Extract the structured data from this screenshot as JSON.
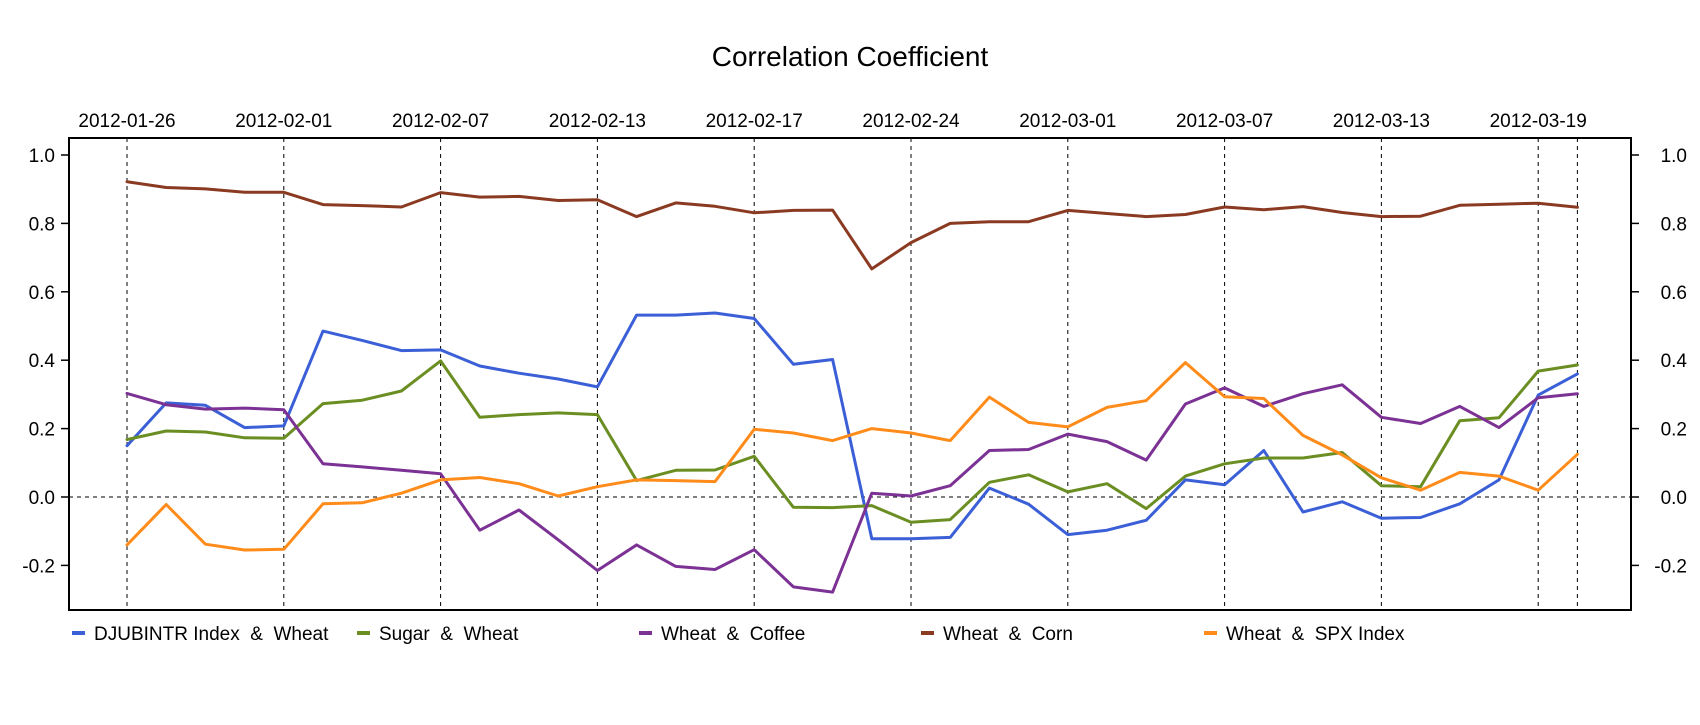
{
  "chart_data": {
    "type": "line",
    "title": "Correlation Coefficient",
    "xlabel": "",
    "ylabel": "",
    "ylim": [
      -0.33,
      1.05
    ],
    "yticks": [
      -0.2,
      0.0,
      0.2,
      0.4,
      0.6,
      0.8,
      1.0
    ],
    "ytick_labels": [
      "-0.2",
      "0.0",
      "0.2",
      "0.4",
      "0.6",
      "0.8",
      "1.0"
    ],
    "xtick_labels": [
      "2012-01-26",
      "2012-02-01",
      "2012-02-07",
      "2012-02-13",
      "2012-02-17",
      "2012-02-24",
      "2012-03-01",
      "2012-03-07",
      "2012-03-13",
      "2012-03-19"
    ],
    "xtick_positions": [
      0,
      4,
      8,
      12,
      16,
      20,
      24,
      28,
      32,
      36
    ],
    "extra_vlines": [
      37
    ],
    "x": [
      "2012-01-26",
      "2012-01-27",
      "2012-01-30",
      "2012-01-31",
      "2012-02-01",
      "2012-02-02",
      "2012-02-03",
      "2012-02-06",
      "2012-02-07",
      "2012-02-08",
      "2012-02-09",
      "2012-02-10",
      "2012-02-13",
      "2012-02-14",
      "2012-02-15",
      "2012-02-16",
      "2012-02-17",
      "2012-02-21",
      "2012-02-22",
      "2012-02-23",
      "2012-02-24",
      "2012-02-27",
      "2012-02-28",
      "2012-02-29",
      "2012-03-01",
      "2012-03-02",
      "2012-03-05",
      "2012-03-06",
      "2012-03-07",
      "2012-03-08",
      "2012-03-09",
      "2012-03-12",
      "2012-03-13",
      "2012-03-14",
      "2012-03-15",
      "2012-03-16",
      "2012-03-19",
      "2012-03-20"
    ],
    "grid": "dashed vertical lines at tick dates and dashed horizontal line at 0.0",
    "legend_position": "bottom",
    "series": [
      {
        "name": "DJUBINTR Index  &  Wheat",
        "color": "#3b5fd6",
        "values": [
          0.15,
          0.275,
          0.268,
          0.203,
          0.208,
          0.485,
          0.458,
          0.428,
          0.43,
          0.383,
          0.362,
          0.345,
          0.322,
          0.532,
          0.532,
          0.538,
          0.522,
          0.388,
          0.402,
          -0.122,
          -0.122,
          -0.118,
          0.026,
          -0.021,
          -0.11,
          -0.097,
          -0.068,
          0.05,
          0.036,
          0.136,
          -0.044,
          -0.014,
          -0.062,
          -0.06,
          -0.02,
          0.05,
          0.298,
          0.36
        ]
      },
      {
        "name": "Sugar  &  Wheat",
        "color": "#6b8e23",
        "values": [
          0.168,
          0.193,
          0.19,
          0.173,
          0.172,
          0.273,
          0.283,
          0.31,
          0.398,
          0.233,
          0.241,
          0.246,
          0.241,
          0.048,
          0.078,
          0.079,
          0.119,
          -0.03,
          -0.031,
          -0.025,
          -0.074,
          -0.066,
          0.043,
          0.065,
          0.015,
          0.039,
          -0.034,
          0.061,
          0.097,
          0.114,
          0.114,
          0.13,
          0.033,
          0.03,
          0.223,
          0.232,
          0.368,
          0.386
        ]
      },
      {
        "name": "Wheat  &  Coffee",
        "color": "#7b3294",
        "values": [
          0.303,
          0.27,
          0.257,
          0.26,
          0.255,
          0.097,
          0.088,
          0.078,
          0.068,
          -0.097,
          -0.038,
          -0.125,
          -0.215,
          -0.14,
          -0.203,
          -0.212,
          -0.154,
          -0.263,
          -0.278,
          0.011,
          0.003,
          0.033,
          0.136,
          0.139,
          0.184,
          0.162,
          0.108,
          0.272,
          0.319,
          0.265,
          0.302,
          0.328,
          0.233,
          0.215,
          0.265,
          0.203,
          0.29,
          0.302
        ]
      },
      {
        "name": "Wheat  &  Corn",
        "color": "#8b3a22",
        "values": [
          0.922,
          0.905,
          0.901,
          0.891,
          0.891,
          0.855,
          0.852,
          0.848,
          0.89,
          0.877,
          0.879,
          0.867,
          0.869,
          0.82,
          0.86,
          0.85,
          0.831,
          0.838,
          0.839,
          0.667,
          0.744,
          0.8,
          0.805,
          0.805,
          0.838,
          0.829,
          0.82,
          0.826,
          0.848,
          0.84,
          0.849,
          0.832,
          0.82,
          0.821,
          0.853,
          0.856,
          0.859,
          0.847
        ]
      },
      {
        "name": "Wheat  &  SPX Index",
        "color": "#ff8c1a",
        "values": [
          -0.14,
          -0.022,
          -0.138,
          -0.155,
          -0.153,
          -0.02,
          -0.017,
          0.011,
          0.05,
          0.057,
          0.039,
          0.003,
          0.03,
          0.05,
          0.048,
          0.045,
          0.198,
          0.187,
          0.165,
          0.2,
          0.187,
          0.165,
          0.292,
          0.218,
          0.205,
          0.262,
          0.282,
          0.393,
          0.293,
          0.288,
          0.18,
          0.123,
          0.056,
          0.02,
          0.072,
          0.061,
          0.02,
          0.125
        ]
      }
    ]
  }
}
